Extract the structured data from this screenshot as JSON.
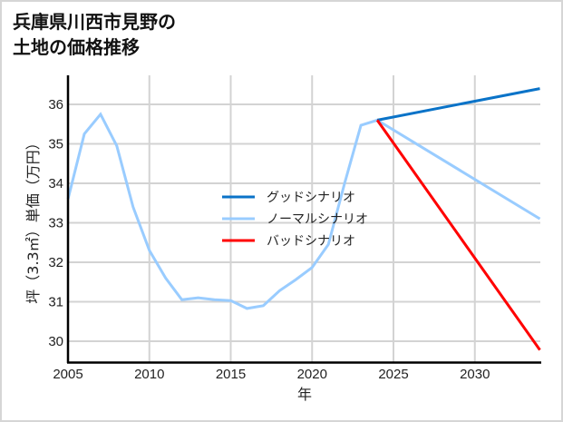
{
  "title_line1": "兵庫県川西市見野の",
  "title_line2": "土地の価格推移",
  "colors": {
    "good": "#0a73c8",
    "normal": "#99ccff",
    "bad": "#ff0000",
    "grid": "#d3d3d3",
    "frame": "#d6d6d6"
  },
  "chart_data": {
    "type": "line",
    "title": "兵庫県川西市見野の土地の価格推移",
    "xlabel": "年",
    "ylabel": "坪（3.3㎡）単価（万円）",
    "xlim": [
      2005,
      2034
    ],
    "ylim": [
      29.5,
      36.7
    ],
    "x_ticks": [
      2005,
      2010,
      2015,
      2020,
      2025,
      2030
    ],
    "y_ticks": [
      30,
      31,
      32,
      33,
      34,
      35,
      36
    ],
    "grid": true,
    "legend_position": "center",
    "series": [
      {
        "name": "ノーマルシナリオ",
        "color": "#99ccff",
        "x": [
          2005,
          2006,
          2007,
          2008,
          2009,
          2010,
          2011,
          2012,
          2013,
          2014,
          2015,
          2016,
          2017,
          2018,
          2019,
          2020,
          2021,
          2022,
          2023,
          2024,
          2034
        ],
        "values": [
          33.6,
          35.25,
          35.75,
          34.95,
          33.4,
          32.3,
          31.6,
          31.05,
          31.1,
          31.05,
          31.03,
          30.83,
          30.9,
          31.28,
          31.56,
          31.87,
          32.45,
          34.0,
          35.47,
          35.6,
          33.1
        ]
      },
      {
        "name": "グッドシナリオ",
        "color": "#0a73c8",
        "x": [
          2024,
          2034
        ],
        "values": [
          35.6,
          36.4
        ]
      },
      {
        "name": "バッドシナリオ",
        "color": "#ff0000",
        "x": [
          2024,
          2034
        ],
        "values": [
          35.6,
          29.78
        ]
      }
    ]
  },
  "legend": [
    {
      "label": "グッドシナリオ",
      "key": "good"
    },
    {
      "label": "ノーマルシナリオ",
      "key": "normal"
    },
    {
      "label": "バッドシナリオ",
      "key": "bad"
    }
  ]
}
